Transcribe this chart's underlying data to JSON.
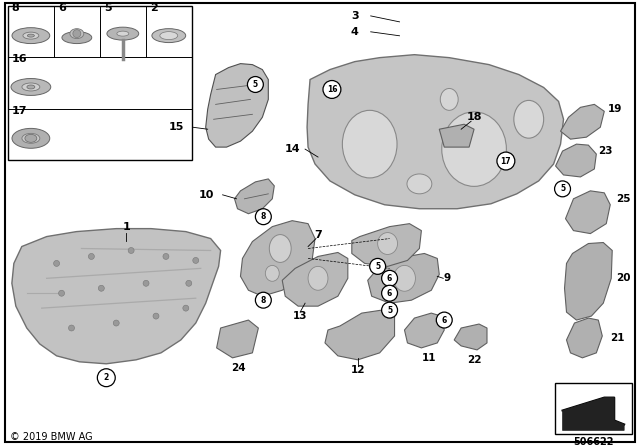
{
  "bg_color": "#ffffff",
  "copyright": "© 2019 BMW AG",
  "part_number": "506622",
  "grid_labels_row1": [
    "8",
    "6",
    "5",
    "2"
  ],
  "grid_labels_row2": "16",
  "grid_labels_row3": "17",
  "fig_w": 6.4,
  "fig_h": 4.48,
  "dpi": 100,
  "part_color_light": "#c8c8c8",
  "part_color_mid": "#b0b0b0",
  "part_color_dark": "#909090",
  "part_color_edge": "#606060",
  "line_color": "#000000"
}
